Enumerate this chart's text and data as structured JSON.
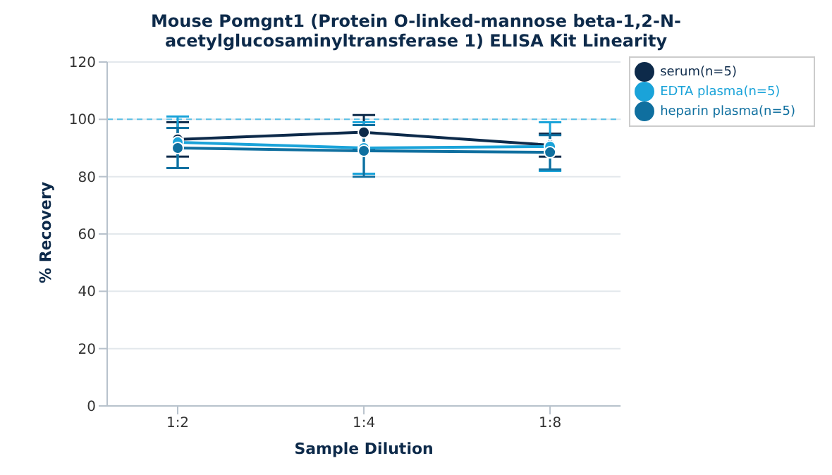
{
  "chart_data": {
    "type": "line",
    "title": "Mouse Pomgnt1 (Protein O-linked-mannose beta-1,2-N-acetylglucosaminyltransferase 1) ELISA Kit Linearity",
    "xlabel": "Sample Dilution",
    "ylabel": "% Recovery",
    "categories": [
      "1:2",
      "1:4",
      "1:8"
    ],
    "series": [
      {
        "name": "serum(n=5)",
        "color": "#0d2a4a",
        "values": [
          93,
          95.5,
          91
        ],
        "errors": [
          6,
          6,
          4
        ]
      },
      {
        "name": "EDTA plasma(n=5)",
        "color": "#1aa3d9",
        "values": [
          92,
          90,
          90.5
        ],
        "errors": [
          9,
          9,
          8.5
        ]
      },
      {
        "name": "heparin plasma(n=5)",
        "color": "#0f6f9f",
        "values": [
          90,
          89,
          88.5
        ],
        "errors": [
          7,
          9,
          6
        ]
      }
    ],
    "ylim": [
      0,
      120
    ],
    "yticks": [
      0,
      20,
      40,
      60,
      80,
      100,
      120
    ],
    "grid": "y",
    "legend": "top right",
    "marker": "circle",
    "line_style": "solid",
    "ref_lines": [
      {
        "axis": "y",
        "value": 100,
        "color": "#5bc0e6",
        "line_style": "dashed"
      }
    ]
  }
}
